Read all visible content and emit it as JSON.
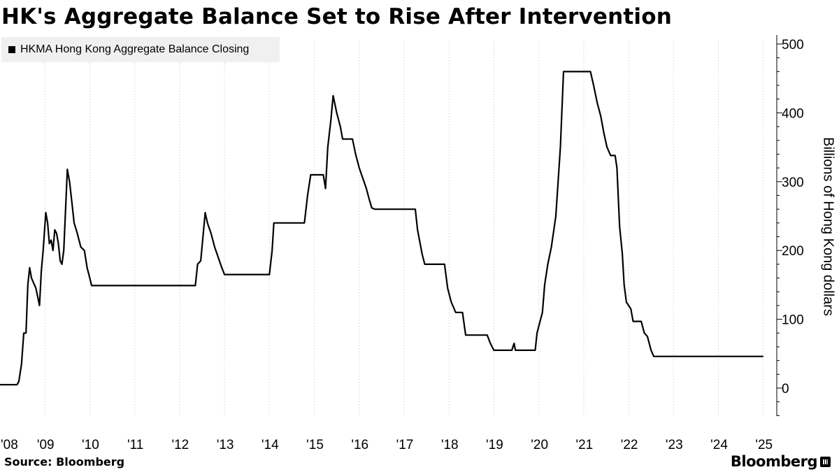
{
  "chart_data": {
    "type": "line",
    "title": "HK's Aggregate Balance Set to Rise After Intervention",
    "ylabel": "Billions of Hong Kong dollars",
    "ylim": [
      0,
      500
    ],
    "yticks": [
      0,
      100,
      200,
      300,
      400,
      500
    ],
    "xlim": [
      2008.0,
      2025.3
    ],
    "xticks": [
      {
        "v": 2008,
        "label": "'08"
      },
      {
        "v": 2009,
        "label": "'09"
      },
      {
        "v": 2010,
        "label": "'10"
      },
      {
        "v": 2011,
        "label": "'11"
      },
      {
        "v": 2012,
        "label": "'12"
      },
      {
        "v": 2013,
        "label": "'13"
      },
      {
        "v": 2014,
        "label": "'14"
      },
      {
        "v": 2015,
        "label": "'15"
      },
      {
        "v": 2016,
        "label": "'16"
      },
      {
        "v": 2017,
        "label": "'17"
      },
      {
        "v": 2018,
        "label": "'18"
      },
      {
        "v": 2019,
        "label": "'19"
      },
      {
        "v": 2020,
        "label": "'20"
      },
      {
        "v": 2021,
        "label": "'21"
      },
      {
        "v": 2022,
        "label": "'22"
      },
      {
        "v": 2023,
        "label": "'23"
      },
      {
        "v": 2024,
        "label": "'24"
      },
      {
        "v": 2025,
        "label": "'25"
      }
    ],
    "grid": "vertical-dashed",
    "legend_position": "top-left",
    "series": [
      {
        "name": "HKMA Hong Kong Aggregate Balance Closing",
        "color": "#000000",
        "points": [
          [
            2008.0,
            5
          ],
          [
            2008.38,
            5
          ],
          [
            2008.42,
            10
          ],
          [
            2008.48,
            35
          ],
          [
            2008.53,
            80
          ],
          [
            2008.58,
            80
          ],
          [
            2008.62,
            150
          ],
          [
            2008.66,
            175
          ],
          [
            2008.7,
            160
          ],
          [
            2008.8,
            145
          ],
          [
            2008.88,
            120
          ],
          [
            2008.92,
            170
          ],
          [
            2008.96,
            200
          ],
          [
            2009.02,
            255
          ],
          [
            2009.06,
            240
          ],
          [
            2009.1,
            210
          ],
          [
            2009.14,
            215
          ],
          [
            2009.18,
            200
          ],
          [
            2009.22,
            230
          ],
          [
            2009.26,
            225
          ],
          [
            2009.3,
            210
          ],
          [
            2009.34,
            185
          ],
          [
            2009.38,
            180
          ],
          [
            2009.42,
            200
          ],
          [
            2009.46,
            260
          ],
          [
            2009.5,
            318
          ],
          [
            2009.55,
            300
          ],
          [
            2009.6,
            270
          ],
          [
            2009.65,
            240
          ],
          [
            2009.72,
            225
          ],
          [
            2009.8,
            205
          ],
          [
            2009.88,
            200
          ],
          [
            2009.94,
            175
          ],
          [
            2010.0,
            160
          ],
          [
            2010.04,
            149
          ],
          [
            2012.35,
            149
          ],
          [
            2012.4,
            180
          ],
          [
            2012.47,
            185
          ],
          [
            2012.52,
            220
          ],
          [
            2012.57,
            255
          ],
          [
            2012.62,
            240
          ],
          [
            2012.7,
            225
          ],
          [
            2012.78,
            205
          ],
          [
            2012.86,
            190
          ],
          [
            2012.94,
            175
          ],
          [
            2013.0,
            165
          ],
          [
            2014.0,
            165
          ],
          [
            2014.06,
            200
          ],
          [
            2014.1,
            240
          ],
          [
            2014.78,
            240
          ],
          [
            2014.85,
            280
          ],
          [
            2014.92,
            310
          ],
          [
            2015.2,
            310
          ],
          [
            2015.25,
            290
          ],
          [
            2015.3,
            350
          ],
          [
            2015.37,
            390
          ],
          [
            2015.42,
            425
          ],
          [
            2015.5,
            400
          ],
          [
            2015.58,
            380
          ],
          [
            2015.63,
            362
          ],
          [
            2015.85,
            362
          ],
          [
            2015.92,
            340
          ],
          [
            2016.0,
            320
          ],
          [
            2016.08,
            305
          ],
          [
            2016.16,
            290
          ],
          [
            2016.22,
            275
          ],
          [
            2016.28,
            262
          ],
          [
            2016.35,
            260
          ],
          [
            2017.25,
            260
          ],
          [
            2017.3,
            230
          ],
          [
            2017.4,
            195
          ],
          [
            2017.46,
            180
          ],
          [
            2017.9,
            180
          ],
          [
            2017.97,
            145
          ],
          [
            2018.05,
            125
          ],
          [
            2018.15,
            110
          ],
          [
            2018.3,
            110
          ],
          [
            2018.37,
            77
          ],
          [
            2018.85,
            77
          ],
          [
            2018.92,
            65
          ],
          [
            2019.0,
            55
          ],
          [
            2019.4,
            55
          ],
          [
            2019.45,
            65
          ],
          [
            2019.48,
            55
          ],
          [
            2019.92,
            55
          ],
          [
            2019.96,
            80
          ],
          [
            2020.02,
            95
          ],
          [
            2020.08,
            110
          ],
          [
            2020.13,
            150
          ],
          [
            2020.2,
            180
          ],
          [
            2020.28,
            205
          ],
          [
            2020.38,
            250
          ],
          [
            2020.48,
            350
          ],
          [
            2020.55,
            460
          ],
          [
            2021.15,
            460
          ],
          [
            2021.22,
            440
          ],
          [
            2021.3,
            415
          ],
          [
            2021.38,
            395
          ],
          [
            2021.45,
            370
          ],
          [
            2021.52,
            350
          ],
          [
            2021.6,
            338
          ],
          [
            2021.7,
            338
          ],
          [
            2021.74,
            320
          ],
          [
            2021.8,
            235
          ],
          [
            2021.86,
            195
          ],
          [
            2021.9,
            150
          ],
          [
            2021.95,
            125
          ],
          [
            2022.05,
            115
          ],
          [
            2022.1,
            97
          ],
          [
            2022.28,
            97
          ],
          [
            2022.35,
            80
          ],
          [
            2022.42,
            75
          ],
          [
            2022.5,
            55
          ],
          [
            2022.56,
            46
          ],
          [
            2025.0,
            46
          ]
        ]
      }
    ]
  },
  "legend": {
    "label": "HKMA Hong Kong Aggregate Balance Closing"
  },
  "footer": {
    "source": "Source: Bloomberg",
    "brand": "Bloomberg"
  }
}
